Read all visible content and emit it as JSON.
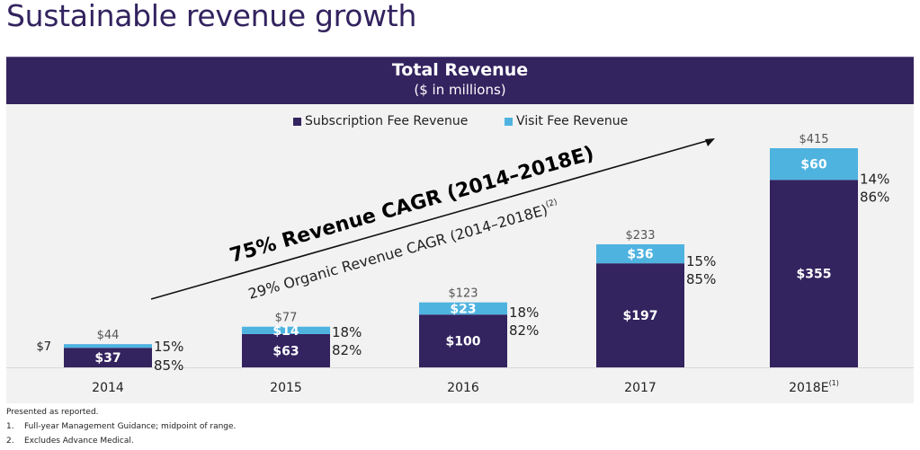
{
  "page": {
    "title": "Sustainable revenue growth"
  },
  "header": {
    "title": "Total Revenue",
    "subtitle": "($ in millions)"
  },
  "colors": {
    "brand": "#33235f",
    "subscription": "#33235f",
    "visit": "#4fb3e0",
    "panel": "#f2f2f2",
    "text": "#222222"
  },
  "chart_data": {
    "type": "bar",
    "stacked": true,
    "title": "Total Revenue",
    "subtitle": "($ in millions)",
    "xlabel": "",
    "ylabel": "",
    "ylim": [
      0,
      415
    ],
    "grid": false,
    "legend_position": "top-center",
    "categories": [
      "2014",
      "2015",
      "2016",
      "2017",
      "2018E"
    ],
    "category_superscripts": [
      "",
      "",
      "",
      "",
      "(1)"
    ],
    "series": [
      {
        "name": "Subscription Fee Revenue",
        "color": "#33235f",
        "values": [
          37,
          63,
          100,
          197,
          355
        ],
        "labels": [
          "$37",
          "$63",
          "$100",
          "$197",
          "$355"
        ],
        "share_labels": [
          "85%",
          "82%",
          "82%",
          "85%",
          "86%"
        ]
      },
      {
        "name": "Visit Fee Revenue",
        "color": "#4fb3e0",
        "values": [
          7,
          14,
          23,
          36,
          60
        ],
        "labels": [
          "$7",
          "$14",
          "$23",
          "$36",
          "$60"
        ],
        "share_labels": [
          "15%",
          "18%",
          "18%",
          "15%",
          "14%"
        ]
      }
    ],
    "totals": [
      44,
      77,
      123,
      233,
      415
    ],
    "total_labels": [
      "$44",
      "$77",
      "$123",
      "$233",
      "$415"
    ],
    "annotations": [
      {
        "text": "75% Revenue CAGR (2014–2018E)",
        "superscript": "",
        "style": "bold"
      },
      {
        "text": "29% Organic Revenue CAGR (2014–2018E)",
        "superscript": "(2)",
        "style": "normal"
      }
    ]
  },
  "footnotes": {
    "intro": "Presented as reported.",
    "items": [
      {
        "num": "1.",
        "text": "Full-year Management Guidance; midpoint of range."
      },
      {
        "num": "2.",
        "text": "Excludes Advance Medical."
      }
    ]
  }
}
